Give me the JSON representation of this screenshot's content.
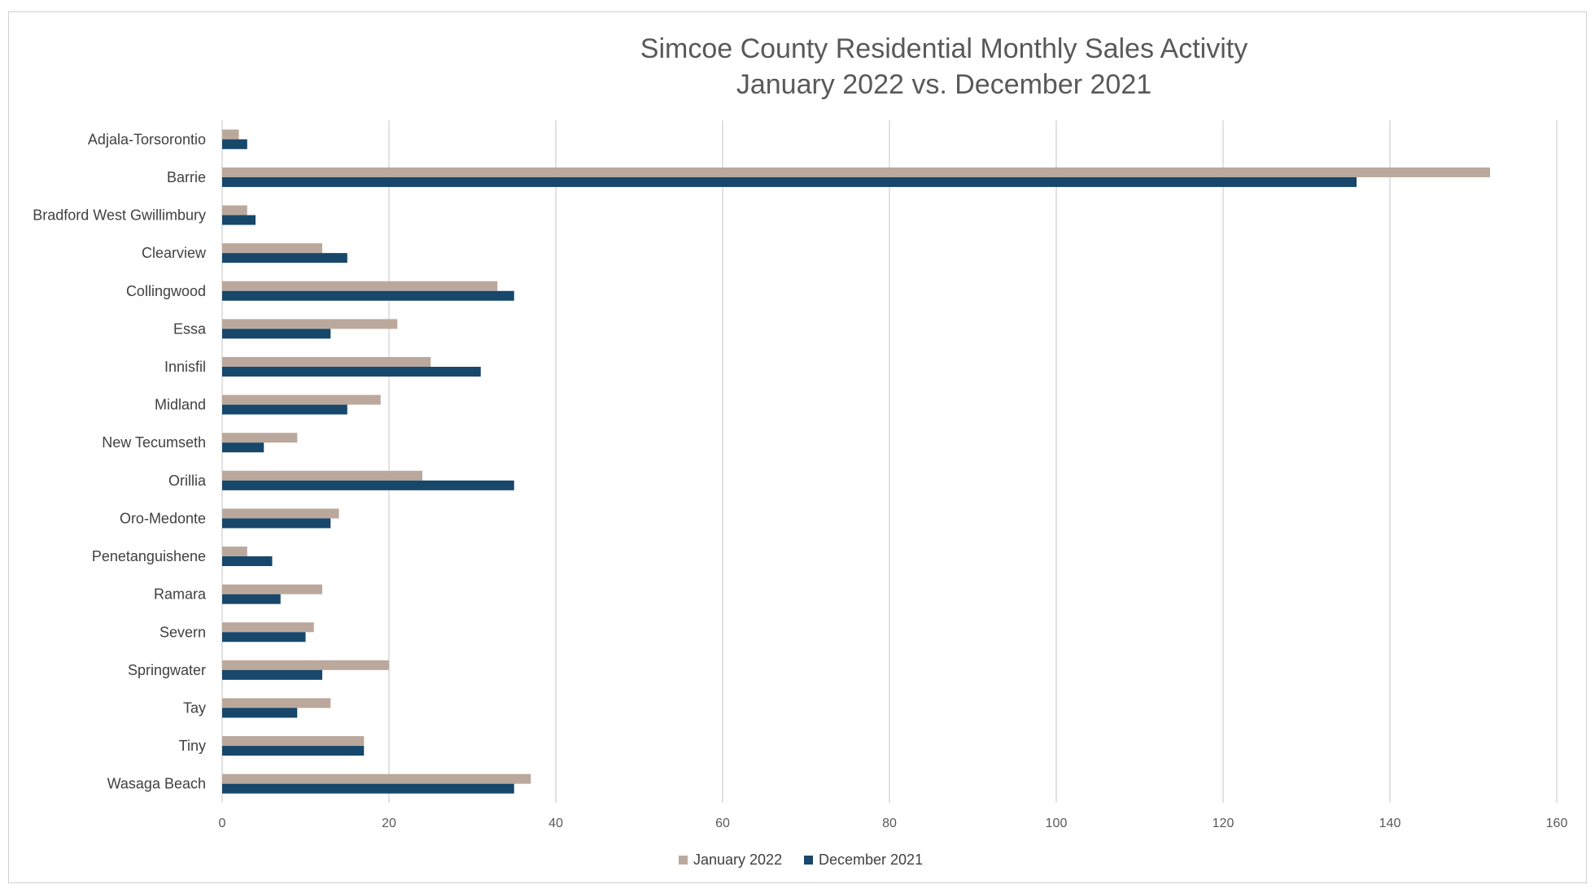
{
  "chart_data": {
    "type": "bar",
    "orientation": "horizontal",
    "title": [
      "Simcoe County Residential Monthly Sales Activity",
      "January 2022 vs. December 2021"
    ],
    "xlabel": "",
    "ylabel": "",
    "xlim": [
      0,
      160
    ],
    "x_ticks": [
      0,
      20,
      40,
      60,
      80,
      100,
      120,
      140,
      160
    ],
    "grid": "vertical",
    "legend_position": "bottom",
    "categories": [
      "Adjala-Torsorontio",
      "Barrie",
      "Bradford West Gwillimbury",
      "Clearview",
      "Collingwood",
      "Essa",
      "Innisfil",
      "Midland",
      "New Tecumseth",
      "Orillia",
      "Oro-Medonte",
      "Penetanguishene",
      "Ramara",
      "Severn",
      "Springwater",
      "Tay",
      "Tiny",
      "Wasaga Beach"
    ],
    "series": [
      {
        "name": "January 2022",
        "color": "#bba89c",
        "values": [
          2,
          152,
          3,
          12,
          33,
          21,
          25,
          19,
          9,
          24,
          14,
          3,
          12,
          11,
          20,
          13,
          17,
          37
        ]
      },
      {
        "name": "December 2021",
        "color": "#17476a",
        "values": [
          3,
          136,
          4,
          15,
          35,
          13,
          31,
          15,
          5,
          35,
          13,
          6,
          7,
          10,
          12,
          9,
          17,
          35
        ]
      }
    ]
  }
}
